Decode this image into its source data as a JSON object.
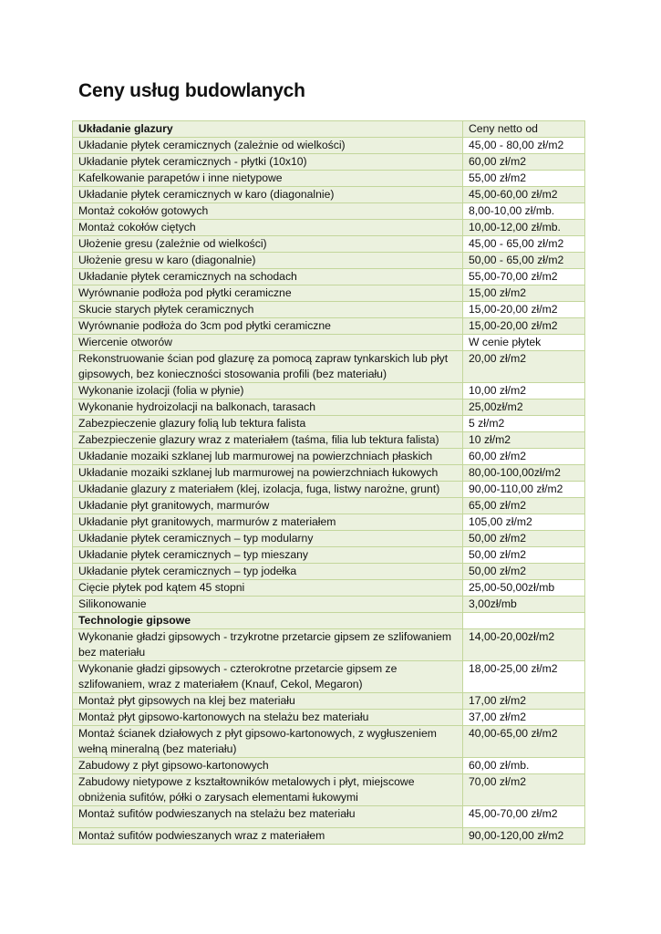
{
  "title": "Ceny usług budowlanych",
  "colors": {
    "cell_bg": "#ebf1de",
    "border": "#c3d69b",
    "alt_price_bg": "#ffffff"
  },
  "table": {
    "header": {
      "label": "Układanie glazury",
      "price": "Ceny netto od"
    },
    "rows": [
      {
        "label": "Układanie płytek ceramicznych (zależnie od wielkości)",
        "price": "45,00 - 80,00 zł/m2"
      },
      {
        "label": "Układanie płytek ceramicznych - płytki (10x10)",
        "price": "60,00 zł/m2"
      },
      {
        "label": "Kafelkowanie parapetów i inne nietypowe",
        "price": "55,00 zł/m2"
      },
      {
        "label": "Układanie płytek ceramicznych w karo (diagonalnie)",
        "price": "45,00-60,00 zł/m2"
      },
      {
        "label": "Montaż cokołów gotowych",
        "price": "8,00-10,00 zł/mb."
      },
      {
        "label": "Montaż cokołów ciętych",
        "price": "10,00-12,00 zł/mb."
      },
      {
        "label": "Ułożenie gresu (zależnie od wielkości)",
        "price": "45,00 - 65,00 zł/m2"
      },
      {
        "label": "Ułożenie gresu w karo (diagonalnie)",
        "price": "50,00 - 65,00  zł/m2"
      },
      {
        "label": "Układanie płytek ceramicznych na schodach",
        "price": "55,00-70,00 zł/m2"
      },
      {
        "label": "Wyrównanie podłoża pod płytki ceramiczne",
        "price": "15,00 zł/m2"
      },
      {
        "label": "Skucie starych płytek ceramicznych",
        "price": "15,00-20,00 zł/m2"
      },
      {
        "label": "Wyrównanie podłoża do 3cm pod płytki ceramiczne",
        "price": "15,00-20,00 zł/m2"
      },
      {
        "label": "Wiercenie otworów",
        "price": "W cenie płytek"
      },
      {
        "label": "Rekonstruowanie ścian pod glazurę za pomocą zapraw tynkarskich lub płyt gipsowych, bez konieczności stosowania profili  (bez materiału)",
        "price": "20,00 zł/m2"
      },
      {
        "label": "Wykonanie izolacji (folia w płynie)",
        "price": "10,00 zł/m2"
      },
      {
        "label": "Wykonanie hydroizolacji na balkonach, tarasach",
        "price": "25,00zł/m2"
      },
      {
        "label": "Zabezpieczenie glazury folią lub tektura falista",
        "price": "5 zł/m2"
      },
      {
        "label": "Zabezpieczenie glazury wraz z materiałem (taśma, filia lub tektura falista)",
        "price": "10 zł/m2"
      },
      {
        "label": "Układanie mozaiki szklanej lub marmurowej na powierzchniach płaskich",
        "price": "60,00 zł/m2"
      },
      {
        "label": "Układanie mozaiki szklanej lub marmurowej na powierzchniach łukowych",
        "price": "80,00-100,00zł/m2"
      },
      {
        "label": "Układanie glazury z materiałem (klej, izolacja, fuga, listwy narożne, grunt)",
        "price": "90,00-110,00 zł/m2"
      },
      {
        "label": "Układanie  płyt granitowych, marmurów",
        "price": "65,00 zł/m2"
      },
      {
        "label": "Układanie  płyt granitowych, marmurów z materiałem",
        "price": "105,00 zł/m2"
      },
      {
        "label": "Układanie płytek ceramicznych – typ modularny",
        "price": "50,00 zł/m2"
      },
      {
        "label": "Układanie płytek ceramicznych – typ mieszany",
        "price": "50,00 zł/m2"
      },
      {
        "label": "Układanie płytek ceramicznych – typ jodełka",
        "price": "50,00 zł/m2"
      },
      {
        "label": "Cięcie płytek pod kątem 45 stopni",
        "price": "25,00-50,00zł/mb"
      },
      {
        "label": "Silikonowanie",
        "price": "3,00zł/mb"
      },
      {
        "label": "Technologie gipsowe",
        "price": "",
        "section": true
      },
      {
        "label": "Wykonanie gładzi gipsowych - trzykrotne przetarcie gipsem ze szlifowaniem bez materiału",
        "price": "14,00-20,00zł/m2"
      },
      {
        "label": "Wykonanie gładzi gipsowych - czterokrotne przetarcie gipsem ze szlifowaniem, wraz z materiałem (Knauf, Cekol, Megaron)",
        "price": "18,00-25,00 zł/m2"
      },
      {
        "label": "Montaż płyt gipsowych na klej bez materiału",
        "price": "17,00 zł/m2"
      },
      {
        "label": "Montaż płyt gipsowo-kartonowych na stelażu bez materiału",
        "price": "37,00 zł/m2"
      },
      {
        "label": "Montaż ścianek działowych z płyt gipsowo-kartonowych, z wygłuszeniem wełną mineralną (bez materiału)",
        "price": "40,00-65,00 zł/m2"
      },
      {
        "label": "Zabudowy z płyt gipsowo-kartonowych",
        "price": "60,00 zł/mb."
      },
      {
        "label": "Zabudowy nietypowe z kształtowników metalowych i płyt, miejscowe obniżenia sufitów, półki o zarysach elementami łukowymi",
        "price": "70,00 zł/m2"
      },
      {
        "label": "Montaż sufitów podwieszanych na stelażu bez materiału",
        "price": "45,00-70,00 zł/m2",
        "tall": true
      },
      {
        "label": "Montaż sufitów podwieszanych wraz z materiałem",
        "price": "90,00-120,00 zł/m2"
      }
    ]
  }
}
